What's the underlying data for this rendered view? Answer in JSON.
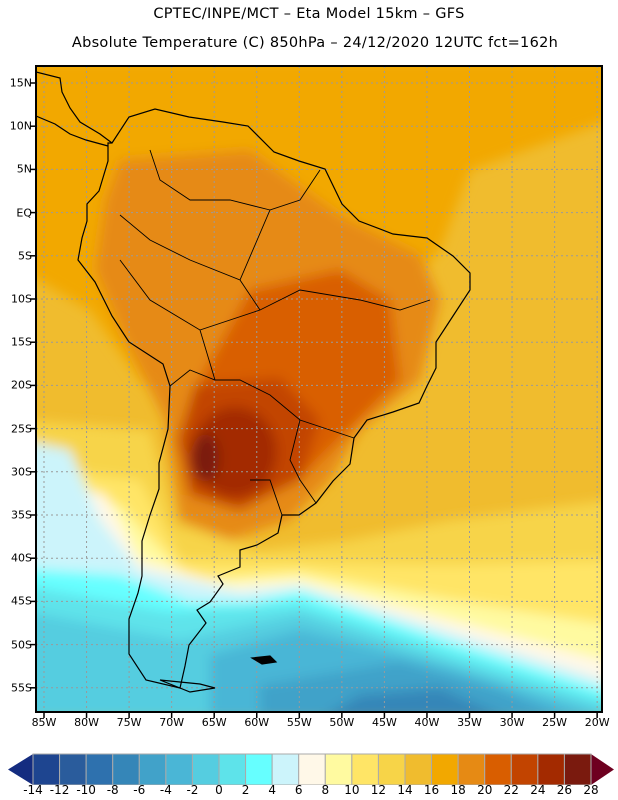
{
  "header": {
    "line1": "CPTEC/INPE/MCT –  Eta Model 15km – GFS",
    "line2": "Absolute Temperature (C) 850hPa – 24/12/2020 12UTC fct=162h"
  },
  "map": {
    "lat_labels": [
      {
        "lat": 15,
        "label": "15N"
      },
      {
        "lat": 10,
        "label": "10N"
      },
      {
        "lat": 5,
        "label": "5N"
      },
      {
        "lat": 0,
        "label": "EQ"
      },
      {
        "lat": -5,
        "label": "5S"
      },
      {
        "lat": -10,
        "label": "10S"
      },
      {
        "lat": -15,
        "label": "15S"
      },
      {
        "lat": -20,
        "label": "20S"
      },
      {
        "lat": -25,
        "label": "25S"
      },
      {
        "lat": -30,
        "label": "30S"
      },
      {
        "lat": -35,
        "label": "35S"
      },
      {
        "lat": -40,
        "label": "40S"
      },
      {
        "lat": -45,
        "label": "45S"
      },
      {
        "lat": -50,
        "label": "50S"
      },
      {
        "lat": -55,
        "label": "55S"
      }
    ],
    "lon_labels": [
      {
        "lon": -85,
        "label": "85W"
      },
      {
        "lon": -80,
        "label": "80W"
      },
      {
        "lon": -75,
        "label": "75W"
      },
      {
        "lon": -70,
        "label": "70W"
      },
      {
        "lon": -65,
        "label": "65W"
      },
      {
        "lon": -60,
        "label": "60W"
      },
      {
        "lon": -55,
        "label": "55W"
      },
      {
        "lon": -50,
        "label": "50W"
      },
      {
        "lon": -45,
        "label": "45W"
      },
      {
        "lon": -40,
        "label": "40W"
      },
      {
        "lon": -35,
        "label": "35W"
      },
      {
        "lon": -30,
        "label": "30W"
      },
      {
        "lon": -25,
        "label": "25W"
      },
      {
        "lon": -20,
        "label": "20W"
      }
    ]
  },
  "colorbar": {
    "levels": [
      "-14",
      "-12",
      "-10",
      "-8",
      "-6",
      "-4",
      "-2",
      "0",
      "2",
      "4",
      "6",
      "8",
      "10",
      "12",
      "14",
      "16",
      "18",
      "20",
      "22",
      "24",
      "26",
      "28"
    ],
    "colors": [
      "#1e4590",
      "#2a5c9c",
      "#2e71ae",
      "#3586b8",
      "#41a2c9",
      "#4ab6d6",
      "#55cde0",
      "#5ee3ea",
      "#66ffff",
      "#ccf4fb",
      "#fff8e8",
      "#fffaa0",
      "#ffe566",
      "#f7d448",
      "#f0bc2e",
      "#f2a800",
      "#e68a14",
      "#d95e00",
      "#c24400",
      "#a32a00",
      "#7a1a0e"
    ],
    "under_color": "#142c80",
    "over_color": "#6e0020"
  }
}
